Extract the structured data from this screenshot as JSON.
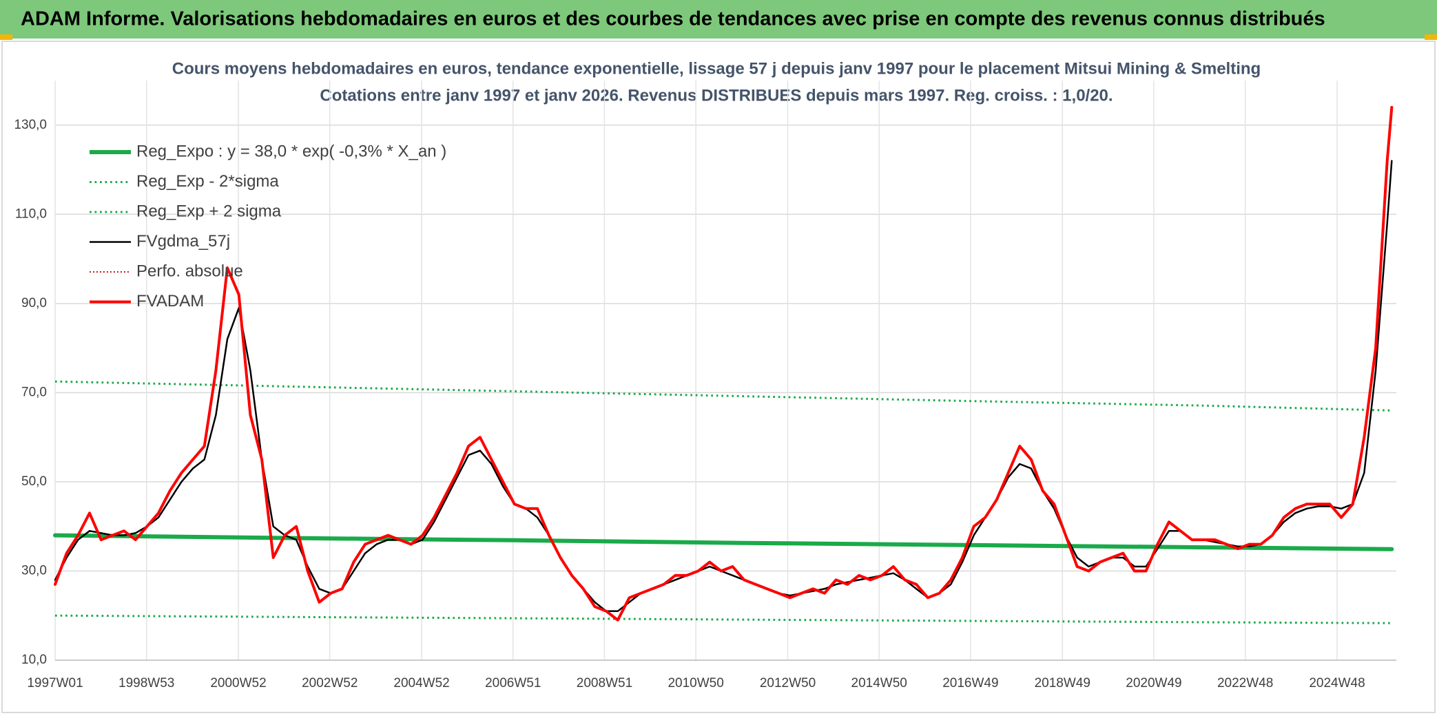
{
  "chart_data": {
    "type": "line",
    "title": "ADAM Informe. Valorisations hebdomadaires en euros et des courbes de tendances avec prise en compte des revenus connus distribués",
    "subtitle": [
      "Cours moyens hebdomadaires en euros, tendance exponentielle, lissage 57 j depuis janv 1997 pour le placement Mitsui Mining & Smelting",
      "Cotations entre janv 1997 et janv 2026. Revenus DISTRIBUES depuis mars 1997. Reg. croiss. : 1,0/20."
    ],
    "xlim": [
      1997,
      2026.2
    ],
    "xticks": [
      {
        "value": 1997.0,
        "label": "1997W01"
      },
      {
        "value": 1998.99,
        "label": "1998W53"
      },
      {
        "value": 2000.99,
        "label": "2000W52"
      },
      {
        "value": 2002.98,
        "label": "2002W52"
      },
      {
        "value": 2004.98,
        "label": "2004W52"
      },
      {
        "value": 2006.97,
        "label": "2006W51"
      },
      {
        "value": 2008.96,
        "label": "2008W51"
      },
      {
        "value": 2010.95,
        "label": "2010W50"
      },
      {
        "value": 2012.95,
        "label": "2012W50"
      },
      {
        "value": 2014.94,
        "label": "2014W50"
      },
      {
        "value": 2016.93,
        "label": "2016W49"
      },
      {
        "value": 2018.93,
        "label": "2018W49"
      },
      {
        "value": 2020.92,
        "label": "2020W49"
      },
      {
        "value": 2022.91,
        "label": "2022W48"
      },
      {
        "value": 2024.91,
        "label": "2024W48"
      }
    ],
    "ylim": [
      10,
      140
    ],
    "yticks": [
      {
        "value": 10,
        "label": "10,0"
      },
      {
        "value": 30,
        "label": "30,0"
      },
      {
        "value": 50,
        "label": "50,0"
      },
      {
        "value": 70,
        "label": "70,0"
      },
      {
        "value": 90,
        "label": "90,0"
      },
      {
        "value": 110,
        "label": "110,0"
      },
      {
        "value": 130,
        "label": "130,0"
      }
    ],
    "grid": true,
    "legend": "upper left",
    "series": [
      {
        "name": "Reg_Expo : y = 38,0 * exp( -0,3% *  X_an )",
        "color": "#1aaa4a",
        "style": "solid",
        "width": 6,
        "x": [
          1997,
          2002,
          2007,
          2012,
          2017,
          2022,
          2026.1
        ],
        "values": [
          38.0,
          37.4,
          36.9,
          36.3,
          35.8,
          35.3,
          34.9
        ]
      },
      {
        "name": "Reg_Exp - 2*sigma",
        "color": "#1aaa4a",
        "style": "dotted",
        "width": 3,
        "x": [
          1997,
          2002,
          2007,
          2012,
          2017,
          2022,
          2026.1
        ],
        "values": [
          20.0,
          19.7,
          19.4,
          19.1,
          18.8,
          18.5,
          18.3
        ]
      },
      {
        "name": "Reg_Exp + 2 sigma",
        "color": "#1aaa4a",
        "style": "dotted",
        "width": 3,
        "x": [
          1997,
          2002,
          2007,
          2012,
          2017,
          2022,
          2026.1
        ],
        "values": [
          72.5,
          71.4,
          70.3,
          69.2,
          68.1,
          67.1,
          66.0
        ]
      },
      {
        "name": "FVgdma_57j",
        "color": "#000000",
        "style": "solid",
        "width": 2.5,
        "x": [
          1997,
          1997.25,
          1997.5,
          1997.75,
          1998,
          1998.25,
          1998.5,
          1998.75,
          1999,
          1999.25,
          1999.5,
          1999.75,
          2000,
          2000.25,
          2000.5,
          2000.75,
          2001,
          2001.25,
          2001.5,
          2001.75,
          2002,
          2002.25,
          2002.5,
          2002.75,
          2003,
          2003.25,
          2003.5,
          2003.75,
          2004,
          2004.25,
          2004.5,
          2004.75,
          2005,
          2005.25,
          2005.5,
          2005.75,
          2006,
          2006.25,
          2006.5,
          2006.75,
          2007,
          2007.25,
          2007.5,
          2007.75,
          2008,
          2008.25,
          2008.5,
          2008.75,
          2009,
          2009.25,
          2009.5,
          2009.75,
          2010,
          2010.25,
          2010.5,
          2010.75,
          2011,
          2011.25,
          2011.5,
          2011.75,
          2012,
          2012.25,
          2012.5,
          2012.75,
          2013,
          2013.25,
          2013.5,
          2013.75,
          2014,
          2014.25,
          2014.5,
          2014.75,
          2015,
          2015.25,
          2015.5,
          2015.75,
          2016,
          2016.25,
          2016.5,
          2016.75,
          2017,
          2017.25,
          2017.5,
          2017.75,
          2018,
          2018.25,
          2018.5,
          2018.75,
          2019,
          2019.25,
          2019.5,
          2019.75,
          2020,
          2020.25,
          2020.5,
          2020.75,
          2021,
          2021.25,
          2021.5,
          2021.75,
          2022,
          2022.25,
          2022.5,
          2022.75,
          2023,
          2023.25,
          2023.5,
          2023.75,
          2024,
          2024.25,
          2024.5,
          2024.75,
          2025,
          2025.25,
          2025.5,
          2025.75,
          2026,
          2026.1
        ],
        "values": [
          28,
          33,
          37,
          39,
          38.5,
          38,
          38,
          38.5,
          40,
          42,
          46,
          50,
          53,
          55,
          65,
          82,
          89,
          75,
          55,
          40,
          38,
          37,
          31,
          26,
          25,
          26,
          30,
          34,
          36,
          37,
          37,
          36,
          37,
          41,
          46,
          51,
          56,
          57,
          54,
          49,
          45,
          44,
          42,
          38,
          33,
          29,
          26,
          23,
          21,
          21,
          23,
          25,
          26,
          27,
          28,
          29,
          30,
          31,
          30,
          29,
          28,
          27,
          26,
          25,
          24.5,
          25,
          25.5,
          26,
          27,
          27.5,
          28,
          28.5,
          29,
          29.5,
          28,
          26,
          24,
          25,
          27,
          32,
          38,
          42,
          46,
          51,
          54,
          53,
          48,
          44,
          38,
          33,
          31,
          32,
          33,
          33,
          31,
          31,
          35,
          39,
          39,
          37,
          37,
          36.5,
          36,
          35.5,
          35.5,
          36,
          38,
          41,
          43,
          44,
          44.5,
          44.5,
          44,
          45,
          52,
          75,
          108,
          122
        ]
      },
      {
        "name": "Perfo. absolue",
        "color": "#c00000",
        "style": "dotted",
        "width": 2
      },
      {
        "name": "FVADAM",
        "color": "#ff0000",
        "style": "solid",
        "width": 4,
        "x": [
          1997,
          1997.25,
          1997.5,
          1997.75,
          1998,
          1998.25,
          1998.5,
          1998.75,
          1999,
          1999.25,
          1999.5,
          1999.75,
          2000,
          2000.25,
          2000.5,
          2000.75,
          2001,
          2001.25,
          2001.5,
          2001.75,
          2002,
          2002.25,
          2002.5,
          2002.75,
          2003,
          2003.25,
          2003.5,
          2003.75,
          2004,
          2004.25,
          2004.5,
          2004.75,
          2005,
          2005.25,
          2005.5,
          2005.75,
          2006,
          2006.25,
          2006.5,
          2006.75,
          2007,
          2007.25,
          2007.5,
          2007.75,
          2008,
          2008.25,
          2008.5,
          2008.75,
          2009,
          2009.25,
          2009.5,
          2009.75,
          2010,
          2010.25,
          2010.5,
          2010.75,
          2011,
          2011.25,
          2011.5,
          2011.75,
          2012,
          2012.25,
          2012.5,
          2012.75,
          2013,
          2013.25,
          2013.5,
          2013.75,
          2014,
          2014.25,
          2014.5,
          2014.75,
          2015,
          2015.25,
          2015.5,
          2015.75,
          2016,
          2016.25,
          2016.5,
          2016.75,
          2017,
          2017.25,
          2017.5,
          2017.75,
          2018,
          2018.25,
          2018.5,
          2018.75,
          2019,
          2019.25,
          2019.5,
          2019.75,
          2020,
          2020.25,
          2020.5,
          2020.75,
          2021,
          2021.25,
          2021.5,
          2021.75,
          2022,
          2022.25,
          2022.5,
          2022.75,
          2023,
          2023.25,
          2023.5,
          2023.75,
          2024,
          2024.25,
          2024.5,
          2024.75,
          2025,
          2025.25,
          2025.5,
          2025.75,
          2026,
          2026.1
        ],
        "values": [
          27,
          34,
          38,
          43,
          37,
          38,
          39,
          37,
          40,
          43,
          48,
          52,
          55,
          58,
          75,
          98,
          92,
          65,
          55,
          33,
          38,
          40,
          30,
          23,
          25,
          26,
          32,
          36,
          37,
          38,
          37,
          36,
          38,
          42,
          47,
          52,
          58,
          60,
          55,
          50,
          45,
          44,
          44,
          38,
          33,
          29,
          26,
          22,
          21,
          19,
          24,
          25,
          26,
          27,
          29,
          29,
          30,
          32,
          30,
          31,
          28,
          27,
          26,
          25,
          24,
          25,
          26,
          25,
          28,
          27,
          29,
          28,
          29,
          31,
          28,
          27,
          24,
          25,
          28,
          33,
          40,
          42,
          46,
          52,
          58,
          55,
          48,
          45,
          38,
          31,
          30,
          32,
          33,
          34,
          30,
          30,
          36,
          41,
          39,
          37,
          37,
          37,
          36,
          35,
          36,
          36,
          38,
          42,
          44,
          45,
          45,
          45,
          42,
          45,
          60,
          80,
          122,
          134
        ]
      }
    ]
  }
}
